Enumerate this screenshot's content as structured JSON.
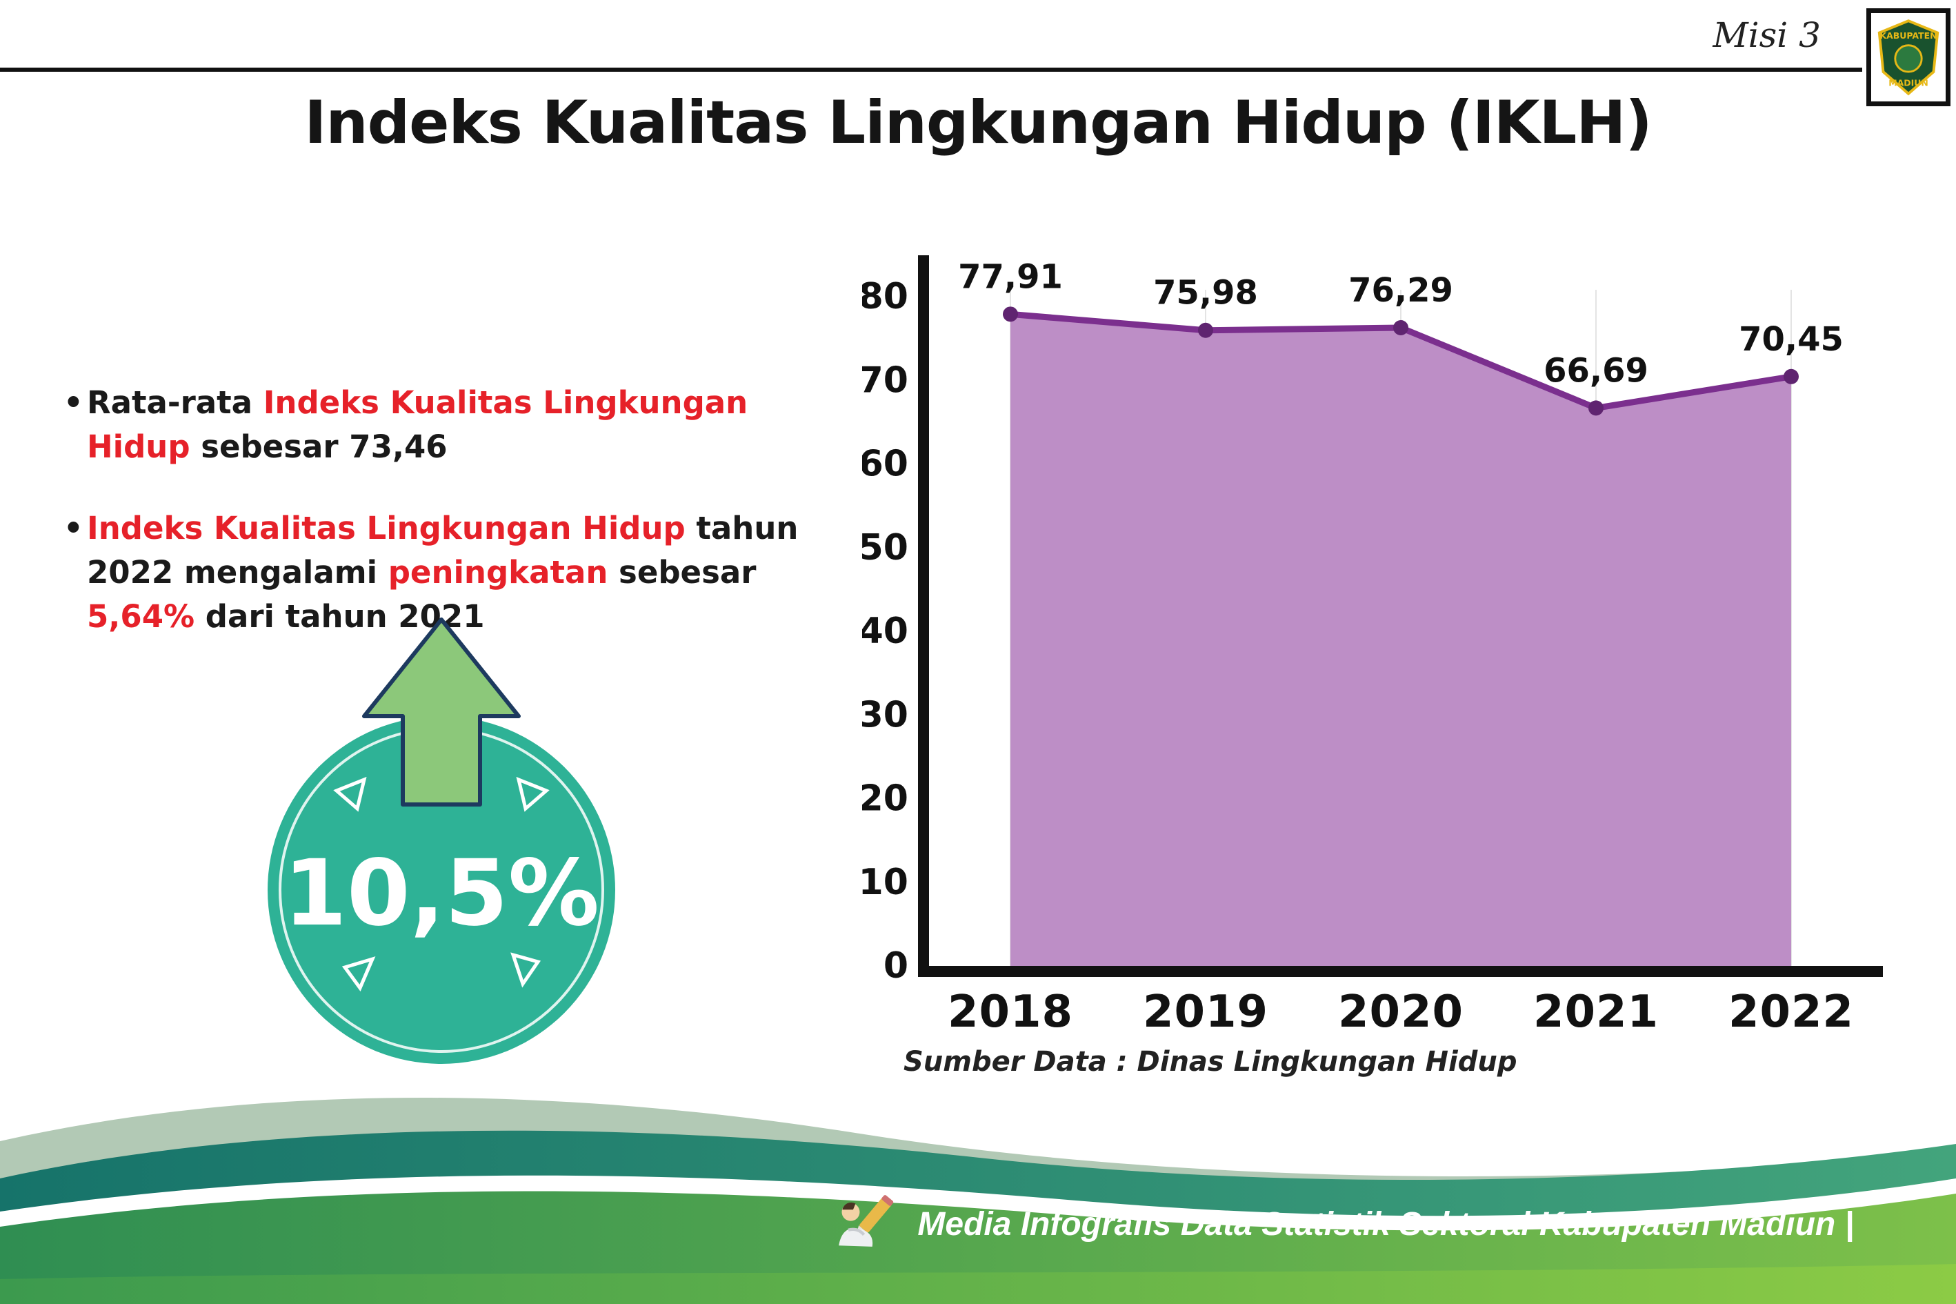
{
  "header": {
    "misi": "Misi 3",
    "title": "Indeks Kualitas Lingkungan Hidup (IKLH)",
    "logo_top": "KABUPATEN",
    "logo_bottom": "MADIUN"
  },
  "bullets": {
    "marker": "•",
    "b1": [
      {
        "t": "Rata-rata "
      },
      {
        "t": "Indeks Kualitas Lingkungan Hidup"
      },
      {
        "t": " sebesar 73,46"
      }
    ],
    "b2": [
      {
        "t": "Indeks Kualitas Lingkungan Hidup"
      },
      {
        "t": " tahun 2022 mengalami "
      },
      {
        "t": "peningkatan"
      },
      {
        "t": " sebesar "
      },
      {
        "t": "5,64%"
      },
      {
        "t": " dari tahun 2021"
      }
    ]
  },
  "highlight": {
    "value": "10,5%",
    "icon": "arrow-up-icon"
  },
  "chart_data": {
    "type": "area",
    "title": "Indeks Kualitas Lingkungan Hidup (IKLH)",
    "categories": [
      "2018",
      "2019",
      "2020",
      "2021",
      "2022"
    ],
    "values": [
      77.91,
      75.98,
      76.29,
      66.69,
      70.45
    ],
    "value_labels": [
      "77,91",
      "75,98",
      "76,29",
      "66,69",
      "70,45"
    ],
    "ylim": [
      0,
      80
    ],
    "yticks": [
      0,
      10,
      20,
      30,
      40,
      50,
      60,
      70,
      80
    ],
    "xlabel": "",
    "ylabel": "",
    "grid": "light vertical gridlines per year",
    "legend": "none",
    "source": "Sumber Data : Dinas Lingkungan Hidup"
  },
  "footer": {
    "text": "Media Infografis Data Statistik Sektoral Kabupaten Madiun |"
  },
  "colors": {
    "red": "#e62129",
    "teal_circle": "#2eb296",
    "arrow_green": "#8cc87a",
    "arrow_outline": "#1d3a5f",
    "chart_line": "#7b2f8e",
    "chart_fill": "#bd8ec6",
    "chart_point": "#5f2470",
    "axis_black": "#111111",
    "pale_wave": "#a5c0a8",
    "footer_teal_dark": "#16736a",
    "footer_teal_light": "#43a47c",
    "footer_green_dark": "#2f8e52",
    "footer_green_light": "#7dc04a",
    "strip_green_dark": "#3c9a4e",
    "strip_green_light": "#8ccb45"
  }
}
